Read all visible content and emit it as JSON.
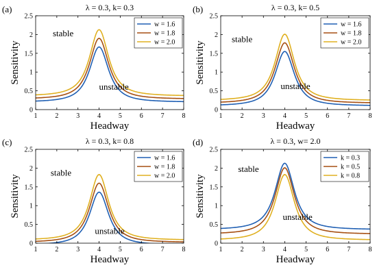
{
  "chart_data": [
    {
      "type": "line",
      "panel_letter": "(a)",
      "title": "λ = 0.3, k= 0.3",
      "xlabel": "Headway",
      "ylabel": "Sensitivity",
      "xlim": [
        1,
        8
      ],
      "ylim": [
        0,
        2.5
      ],
      "xticks": [
        1,
        2,
        3,
        4,
        5,
        6,
        7,
        8
      ],
      "yticks": [
        0,
        0.5,
        1,
        1.5,
        2,
        2.5
      ],
      "xtick_labels": [
        "1",
        "2",
        "3",
        "4",
        "5",
        "6",
        "7",
        "8"
      ],
      "ytick_labels": [
        "0",
        "0.5",
        "1",
        "1.5",
        "2",
        "2.5"
      ],
      "legend_position": "top-right",
      "annotations": [
        {
          "text": "stable",
          "x": 2.3,
          "y": 1.95
        },
        {
          "text": "unstable",
          "x": 4.7,
          "y": 0.53
        }
      ],
      "series": [
        {
          "name": "w = 1.6",
          "color": "#1f5fb3",
          "peak": 1.67,
          "base": 0.2
        },
        {
          "name": "w = 1.8",
          "color": "#a64f12",
          "peak": 1.9,
          "base": 0.28
        },
        {
          "name": "w = 2.0",
          "color": "#e0b020",
          "peak": 2.13,
          "base": 0.36
        }
      ],
      "x": [
        1,
        1.5,
        2,
        2.5,
        3,
        3.25,
        3.5,
        3.75,
        4,
        4.25,
        4.5,
        4.75,
        5,
        5.5,
        6,
        6.5,
        7,
        7.5,
        8
      ]
    },
    {
      "type": "line",
      "panel_letter": "(b)",
      "title": "λ = 0.3, k= 0.5",
      "xlabel": "Headway",
      "ylabel": "Sensitivity",
      "xlim": [
        1,
        8
      ],
      "ylim": [
        0,
        2.5
      ],
      "xticks": [
        1,
        2,
        3,
        4,
        5,
        6,
        7,
        8
      ],
      "yticks": [
        0,
        0.5,
        1,
        1.5,
        2,
        2.5
      ],
      "xtick_labels": [
        "1",
        "2",
        "3",
        "4",
        "5",
        "6",
        "7",
        "8"
      ],
      "ytick_labels": [
        "0",
        "0.5",
        "1",
        "1.5",
        "2",
        "2.5"
      ],
      "legend_position": "top-right",
      "annotations": [
        {
          "text": "stable",
          "x": 2.0,
          "y": 1.8
        },
        {
          "text": "unstable",
          "x": 4.5,
          "y": 0.55
        }
      ],
      "series": [
        {
          "name": "w = 1.6",
          "color": "#1f5fb3",
          "peak": 1.55,
          "base": 0.1
        },
        {
          "name": "w = 1.8",
          "color": "#a64f12",
          "peak": 1.78,
          "base": 0.17
        },
        {
          "name": "w = 2.0",
          "color": "#e0b020",
          "peak": 2.01,
          "base": 0.24
        }
      ],
      "x": [
        1,
        1.5,
        2,
        2.5,
        3,
        3.25,
        3.5,
        3.75,
        4,
        4.25,
        4.5,
        4.75,
        5,
        5.5,
        6,
        6.5,
        7,
        7.5,
        8
      ]
    },
    {
      "type": "line",
      "panel_letter": "(c)",
      "title": "λ = 0.3, k= 0.8",
      "xlabel": "Headway",
      "ylabel": "Sensitivity",
      "xlim": [
        1,
        8
      ],
      "ylim": [
        0,
        2.5
      ],
      "xticks": [
        1,
        2,
        3,
        4,
        5,
        6,
        7,
        8
      ],
      "yticks": [
        0,
        0.5,
        1,
        1.5,
        2,
        2.5
      ],
      "xtick_labels": [
        "1",
        "2",
        "3",
        "4",
        "5",
        "6",
        "7",
        "8"
      ],
      "ytick_labels": [
        "0",
        "0.5",
        "1",
        "1.5",
        "2",
        "2.5"
      ],
      "legend_position": "top-right",
      "annotations": [
        {
          "text": "stable",
          "x": 2.2,
          "y": 1.8
        },
        {
          "text": "unstable",
          "x": 4.5,
          "y": 0.25
        }
      ],
      "series": [
        {
          "name": "w = 1.6",
          "color": "#1f5fb3",
          "peak": 1.36,
          "base": -0.05
        },
        {
          "name": "w = 1.8",
          "color": "#a64f12",
          "peak": 1.6,
          "base": 0.02
        },
        {
          "name": "w = 2.0",
          "color": "#e0b020",
          "peak": 1.83,
          "base": 0.08
        }
      ],
      "x": [
        1,
        1.5,
        2,
        2.5,
        3,
        3.25,
        3.5,
        3.75,
        4,
        4.25,
        4.5,
        4.75,
        5,
        5.5,
        6,
        6.5,
        7,
        7.5,
        8
      ]
    },
    {
      "type": "line",
      "panel_letter": "(d)",
      "title": "λ = 0.3, w= 2.0",
      "xlabel": "Headway",
      "ylabel": "Sensitivity",
      "xlim": [
        1,
        8
      ],
      "ylim": [
        0,
        2.5
      ],
      "xticks": [
        1,
        2,
        3,
        4,
        5,
        6,
        7,
        8
      ],
      "yticks": [
        0,
        0.5,
        1,
        1.5,
        2,
        2.5
      ],
      "xtick_labels": [
        "1",
        "2",
        "3",
        "4",
        "5",
        "6",
        "7",
        "8"
      ],
      "ytick_labels": [
        "0",
        "0.5",
        "1",
        "1.5",
        "2",
        "2.5"
      ],
      "legend_position": "top-right",
      "annotations": [
        {
          "text": "stable",
          "x": 2.3,
          "y": 1.9
        },
        {
          "text": "unstable",
          "x": 4.6,
          "y": 0.62
        }
      ],
      "series": [
        {
          "name": "k = 0.3",
          "color": "#1f5fb3",
          "peak": 2.13,
          "base": 0.36
        },
        {
          "name": "k = 0.5",
          "color": "#a64f12",
          "peak": 2.01,
          "base": 0.24
        },
        {
          "name": "k = 0.8",
          "color": "#e0b020",
          "peak": 1.83,
          "base": 0.08
        }
      ],
      "x": [
        1,
        1.5,
        2,
        2.5,
        3,
        3.25,
        3.5,
        3.75,
        4,
        4.25,
        4.5,
        4.75,
        5,
        5.5,
        6,
        6.5,
        7,
        7.5,
        8
      ]
    }
  ]
}
